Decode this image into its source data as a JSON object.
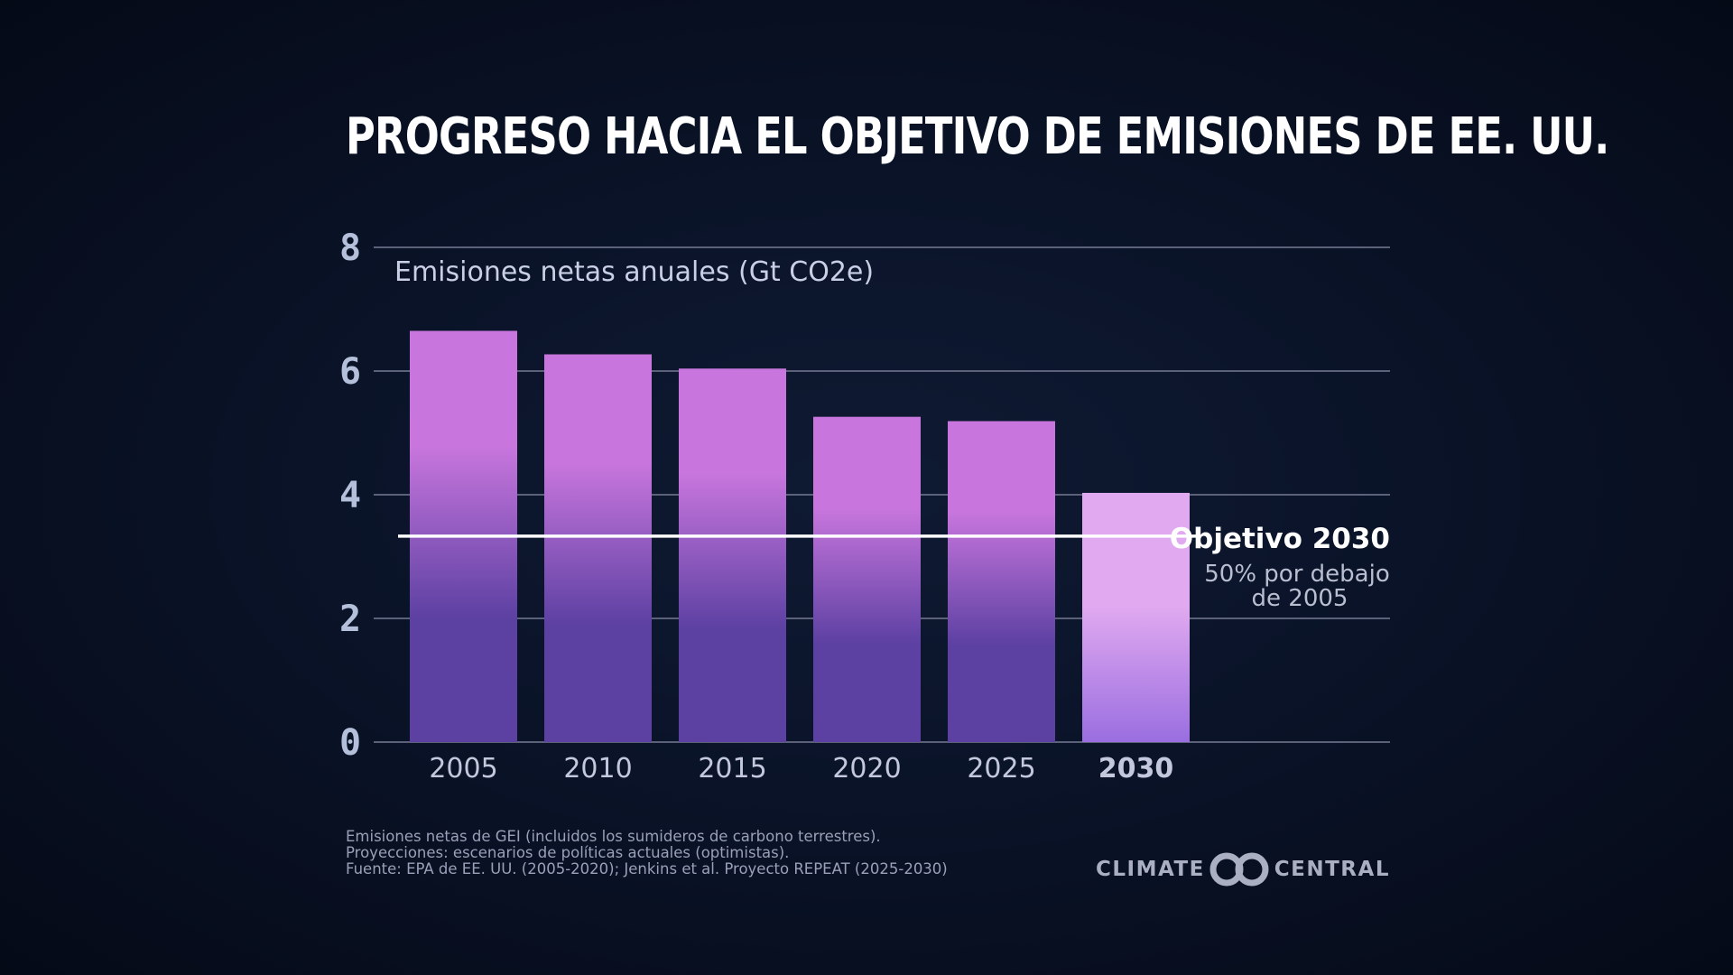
{
  "chart_data": {
    "type": "bar",
    "title": "PROGRESO HACIA EL OBJETIVO DE EMISIONES DE EE. UU.",
    "ylabel": "Emisiones netas anuales (Gt CO2e)",
    "xlabel": "",
    "ylim": [
      0,
      8
    ],
    "yticks": [
      "0",
      "2",
      "4",
      "6",
      "8"
    ],
    "grid": true,
    "categories": [
      "2005",
      "2010",
      "2015",
      "2020",
      "2025",
      "2030"
    ],
    "values": [
      6.65,
      6.27,
      6.04,
      5.26,
      5.19,
      4.03
    ],
    "highlight_category": "2030",
    "target": {
      "value": 3.33,
      "label": "Objetivo 2030",
      "sublabel_line1": "50% por debajo",
      "sublabel_line2": "de 2005"
    },
    "colors": {
      "bar_top": "#c876dd",
      "bar_bottom": "#5c40a2",
      "highlight_top": "#e1aaf0",
      "highlight_bottom": "#9a6ee0",
      "highlight_tick": "#eec1f6",
      "grid": "#5a6178",
      "target_line": "#ffffff"
    }
  },
  "footnotes": [
    "Emisiones netas de GEI (incluidos los sumideros de carbono terrestres).",
    "Proyecciones: escenarios de políticas actuales (optimistas).",
    "Fuente: EPA de EE. UU. (2005-2020); Jenkins et al. Proyecto REPEAT (2025-2030)"
  ],
  "brand": {
    "left": "CLIMATE",
    "right": "CENTRAL",
    "icon": "climate-central-logo-icon"
  }
}
